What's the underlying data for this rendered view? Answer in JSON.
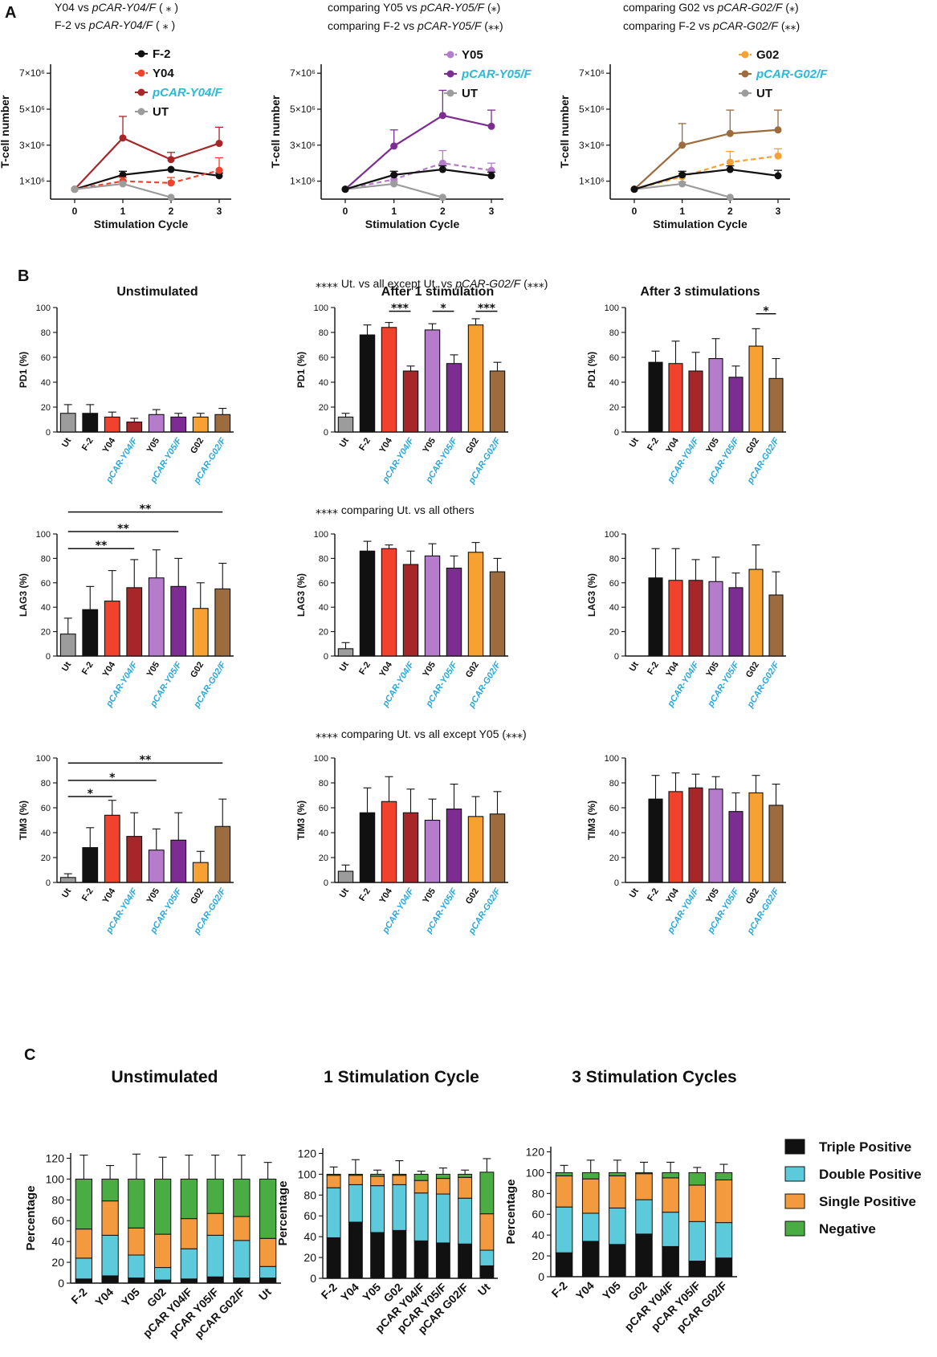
{
  "colors": {
    "black": "#111111",
    "red": "#f0422d",
    "darkred": "#a6262a",
    "gray": "#9c9c9c",
    "lightpurple": "#b57ccb",
    "purple": "#7d2d91",
    "orange": "#f6a132",
    "brown": "#9c6b3e",
    "cyan": "#2bb9d6",
    "stackCyan": "#5ccadb",
    "stackGreen": "#4aad43",
    "stackOrange": "#f39a3e",
    "labelBlue": "#2aa8d8"
  },
  "panel_letters": [
    "A",
    "B",
    "C"
  ],
  "chart_data": [
    {
      "id": "A1",
      "type": "line",
      "comparisons": [
        {
          "text": "Y04 vs ",
          "italic": "pCAR-Y04/F",
          "stars": "( ⁎ )"
        },
        {
          "text": "F-2 vs ",
          "italic": "pCAR-Y04/F",
          "stars": "( ⁎ )"
        }
      ],
      "xlabel": "Stimulation Cycle",
      "ylabel": "T-cell number",
      "x": [
        0,
        1,
        2,
        3
      ],
      "ylim": [
        0,
        7500000
      ],
      "yticks": [
        1000000,
        3000000,
        5000000,
        7000000
      ],
      "ytick_labels": [
        "1×10⁶",
        "3×10⁶",
        "5×10⁶",
        "7×10⁶"
      ],
      "series": [
        {
          "name": "F-2",
          "color": "#111111",
          "dashed": false,
          "values": [
            550000,
            1350000,
            1650000,
            1300000
          ],
          "err": [
            0,
            200000,
            0,
            150000
          ]
        },
        {
          "name": "Y04",
          "color": "#f0422d",
          "dashed": true,
          "values": [
            550000,
            1000000,
            900000,
            1600000
          ],
          "err": [
            0,
            200000,
            300000,
            700000
          ]
        },
        {
          "name": "pCAR-Y04/F",
          "color": "#a6262a",
          "dashed": false,
          "cyanLabel": true,
          "values": [
            550000,
            3400000,
            2200000,
            3100000
          ],
          "err": [
            0,
            1200000,
            400000,
            900000
          ]
        },
        {
          "name": "UT",
          "color": "#9c9c9c",
          "dashed": false,
          "values": [
            550000,
            850000,
            100000,
            null
          ],
          "err": [
            0,
            100000,
            0,
            0
          ]
        }
      ]
    },
    {
      "id": "A2",
      "type": "line",
      "comparisons": [
        {
          "text": "comparing Y05 vs ",
          "italic": "pCAR-Y05/F",
          "stars": "(⁎)"
        },
        {
          "text": "comparing F-2 vs ",
          "italic": "pCAR-Y05/F",
          "stars": "(⁎⁎)"
        }
      ],
      "xlabel": "Stimulation Cycle",
      "ylabel": "T-cell number",
      "x": [
        0,
        1,
        2,
        3
      ],
      "ylim": [
        0,
        7500000
      ],
      "yticks": [
        1000000,
        3000000,
        5000000,
        7000000
      ],
      "ytick_labels": [
        "1×10⁶",
        "3×10⁶",
        "5×10⁶",
        "7×10⁶"
      ],
      "series": [
        {
          "name": "Y05",
          "color": "#b57ccb",
          "dashed": true,
          "values": [
            550000,
            1100000,
            2000000,
            1600000
          ],
          "err": [
            0,
            200000,
            700000,
            400000
          ]
        },
        {
          "name": "pCAR-Y05/F",
          "color": "#7d2d91",
          "dashed": false,
          "cyanLabel": true,
          "values": [
            550000,
            2950000,
            4650000,
            4050000
          ],
          "err": [
            0,
            900000,
            1400000,
            900000
          ]
        },
        {
          "name": "UT",
          "color": "#9c9c9c",
          "dashed": false,
          "values": [
            550000,
            850000,
            100000,
            null
          ],
          "err": [
            0,
            100000,
            0,
            0
          ]
        },
        {
          "name": "F-2",
          "color": "#111111",
          "dashed": false,
          "hideLegend": true,
          "values": [
            550000,
            1350000,
            1650000,
            1300000
          ],
          "err": [
            0,
            200000,
            200000,
            200000
          ]
        }
      ]
    },
    {
      "id": "A3",
      "type": "line",
      "comparisons": [
        {
          "text": "comparing G02 vs ",
          "italic": "pCAR-G02/F",
          "stars": "(⁎)"
        },
        {
          "text": "comparing F-2 vs ",
          "italic": "pCAR-G02/F",
          "stars": "(⁎⁎)"
        }
      ],
      "xlabel": "Stimulation Cycle",
      "ylabel": "T-cell number",
      "x": [
        0,
        1,
        2,
        3
      ],
      "ylim": [
        0,
        7500000
      ],
      "yticks": [
        1000000,
        3000000,
        5000000,
        7000000
      ],
      "ytick_labels": [
        "1×10⁶",
        "3×10⁶",
        "5×10⁶",
        "7×10⁶"
      ],
      "series": [
        {
          "name": "G02",
          "color": "#f6a132",
          "dashed": true,
          "values": [
            550000,
            1250000,
            2050000,
            2400000
          ],
          "err": [
            0,
            200000,
            600000,
            400000
          ]
        },
        {
          "name": "pCAR-G02/F",
          "color": "#9c6b3e",
          "dashed": false,
          "cyanLabel": true,
          "values": [
            550000,
            3000000,
            3650000,
            3850000
          ],
          "err": [
            0,
            1200000,
            1300000,
            1100000
          ]
        },
        {
          "name": "UT",
          "color": "#9c9c9c",
          "dashed": false,
          "values": [
            550000,
            850000,
            100000,
            null
          ],
          "err": [
            0,
            100000,
            0,
            0
          ]
        },
        {
          "name": "F-2",
          "color": "#111111",
          "dashed": false,
          "hideLegend": true,
          "values": [
            550000,
            1350000,
            1650000,
            1300000
          ],
          "err": [
            0,
            200000,
            200000,
            300000
          ]
        }
      ]
    },
    {
      "id": "B",
      "type": "bar",
      "column_titles": [
        "Unstimulated",
        "After 1 stimulation",
        "After 3 stimulations"
      ],
      "categories": [
        "Ut",
        "F-2",
        "Y04",
        "pCAR-Y04/F",
        "Y05",
        "pCAR-Y05/F",
        "G02",
        "pCAR-G02/F"
      ],
      "ylim": [
        0,
        100
      ],
      "yticks": [
        0,
        20,
        40,
        60,
        80,
        100
      ],
      "panels": [
        {
          "ylabel": "PD1 (%)",
          "values": [
            15,
            15,
            12,
            8,
            14,
            12,
            12,
            14
          ],
          "err": [
            7,
            7,
            4,
            3,
            4,
            3,
            3,
            5
          ],
          "brackets": []
        },
        {
          "ylabel": "PD1 (%)",
          "header": {
            "stars": "⁎⁎⁎⁎",
            "text": " Ut. vs all except Ut. vs ",
            "italic": "pCAR-G02/F",
            "suffix": " (⁎⁎⁎)"
          },
          "values": [
            12,
            78,
            84,
            49,
            82,
            55,
            86,
            49
          ],
          "err": [
            3,
            8,
            4,
            4,
            5,
            7,
            5,
            7
          ],
          "brackets": [
            {
              "from": 2,
              "to": 3,
              "y": 97,
              "stars": "⁎⁎⁎"
            },
            {
              "from": 4,
              "to": 5,
              "y": 97,
              "stars": "⁎"
            },
            {
              "from": 6,
              "to": 7,
              "y": 97,
              "stars": "⁎⁎⁎"
            }
          ]
        },
        {
          "ylabel": "PD1 (%)",
          "values": [
            0,
            56,
            55,
            49,
            59,
            44,
            69,
            43
          ],
          "err": [
            0,
            9,
            18,
            15,
            16,
            9,
            14,
            16
          ],
          "brackets": [
            {
              "from": 6,
              "to": 7,
              "y": 95,
              "stars": "⁎"
            }
          ]
        },
        {
          "ylabel": "LAG3 (%)",
          "values": [
            18,
            38,
            45,
            56,
            64,
            57,
            39,
            55
          ],
          "err": [
            13,
            19,
            25,
            23,
            23,
            23,
            21,
            21
          ],
          "brackets": [
            {
              "from": 0,
              "to": 3,
              "y": 88,
              "stars": "⁎⁎"
            },
            {
              "from": 0,
              "to": 5,
              "y": 102,
              "stars": "⁎⁎"
            },
            {
              "from": 0,
              "to": 7,
              "y": 118,
              "stars": "⁎⁎"
            }
          ]
        },
        {
          "ylabel": "LAG3 (%)",
          "header": {
            "stars": "⁎⁎⁎⁎",
            "text": " comparing Ut. vs all others",
            "italic": "",
            "suffix": ""
          },
          "values": [
            6,
            86,
            88,
            75,
            82,
            72,
            85,
            69
          ],
          "err": [
            5,
            8,
            3,
            11,
            10,
            10,
            8,
            11
          ],
          "brackets": []
        },
        {
          "ylabel": "LAG3 (%)",
          "values": [
            0,
            64,
            62,
            62,
            61,
            56,
            71,
            50
          ],
          "err": [
            0,
            24,
            26,
            17,
            20,
            12,
            20,
            19
          ],
          "brackets": []
        },
        {
          "ylabel": "TIM3 (%)",
          "values": [
            4,
            28,
            54,
            37,
            26,
            34,
            16,
            45
          ],
          "err": [
            3,
            16,
            12,
            19,
            17,
            22,
            9,
            22
          ],
          "brackets": [
            {
              "from": 0,
              "to": 2,
              "y": 69,
              "stars": "⁎"
            },
            {
              "from": 0,
              "to": 4,
              "y": 82,
              "stars": "⁎"
            },
            {
              "from": 0,
              "to": 7,
              "y": 96,
              "stars": "⁎⁎"
            }
          ]
        },
        {
          "ylabel": "TIM3 (%)",
          "header": {
            "stars": "⁎⁎⁎⁎",
            "text": " comparing Ut. vs all except Y05 (⁎⁎⁎)",
            "italic": "",
            "suffix": ""
          },
          "values": [
            9,
            56,
            65,
            56,
            50,
            59,
            53,
            55
          ],
          "err": [
            5,
            20,
            20,
            19,
            17,
            20,
            16,
            18
          ],
          "brackets": []
        },
        {
          "ylabel": "TIM3 (%)",
          "values": [
            0,
            67,
            73,
            76,
            75,
            57,
            72,
            62
          ],
          "err": [
            0,
            19,
            15,
            11,
            10,
            15,
            14,
            17
          ],
          "brackets": []
        }
      ]
    },
    {
      "id": "C",
      "type": "stacked_bar",
      "ylabel": "Percentage",
      "ylim": [
        0,
        125
      ],
      "yticks": [
        0,
        20,
        40,
        60,
        80,
        100,
        120
      ],
      "legend": [
        "Triple Positive",
        "Double Positive",
        "Single Positive",
        "Negative"
      ],
      "legend_colors": [
        "#111111",
        "#5ccadb",
        "#f39a3e",
        "#4aad43"
      ],
      "panels": [
        {
          "title": "Unstimulated",
          "categories": [
            "F-2",
            "Y04",
            "Y05",
            "G02",
            "pCAR Y04/F",
            "pCAR Y05/F",
            "pCAR G02/F",
            "Ut"
          ],
          "triple": [
            4,
            7,
            5,
            3,
            4,
            6,
            5,
            5
          ],
          "double": [
            20,
            39,
            22,
            12,
            29,
            40,
            36,
            11
          ],
          "single": [
            28,
            33,
            26,
            32,
            29,
            21,
            23,
            27
          ],
          "negative": [
            48,
            21,
            47,
            53,
            38,
            33,
            36,
            57
          ],
          "total_err": [
            23,
            13,
            24,
            21,
            23,
            23,
            23,
            16
          ]
        },
        {
          "title": "1 Stimulation Cycle",
          "categories": [
            "F-2",
            "Y04",
            "Y05",
            "G02",
            "pCAR Y04/F",
            "pCAR Y05/F",
            "pCAR G02/F",
            "Ut"
          ],
          "triple": [
            39,
            54,
            44,
            46,
            36,
            34,
            33,
            12
          ],
          "double": [
            48,
            36,
            45,
            44,
            46,
            47,
            44,
            15
          ],
          "single": [
            12,
            9,
            9,
            9,
            12,
            15,
            20,
            35
          ],
          "negative": [
            1,
            1,
            2,
            1,
            6,
            4,
            3,
            40
          ],
          "total_err": [
            7,
            14,
            4,
            13,
            3,
            6,
            4,
            13
          ]
        },
        {
          "title": "3 Stimulation Cycles",
          "categories": [
            "F-2",
            "Y04",
            "Y05",
            "G02",
            "pCAR Y04/F",
            "pCAR Y05/F",
            "pCAR G02/F"
          ],
          "triple": [
            23,
            34,
            31,
            41,
            29,
            15,
            18
          ],
          "double": [
            44,
            27,
            35,
            33,
            33,
            38,
            34
          ],
          "single": [
            30,
            33,
            31,
            25,
            33,
            35,
            41
          ],
          "negative": [
            3,
            6,
            3,
            1,
            5,
            12,
            7
          ],
          "total_err": [
            7,
            12,
            12,
            10,
            10,
            5,
            8
          ]
        }
      ]
    }
  ]
}
